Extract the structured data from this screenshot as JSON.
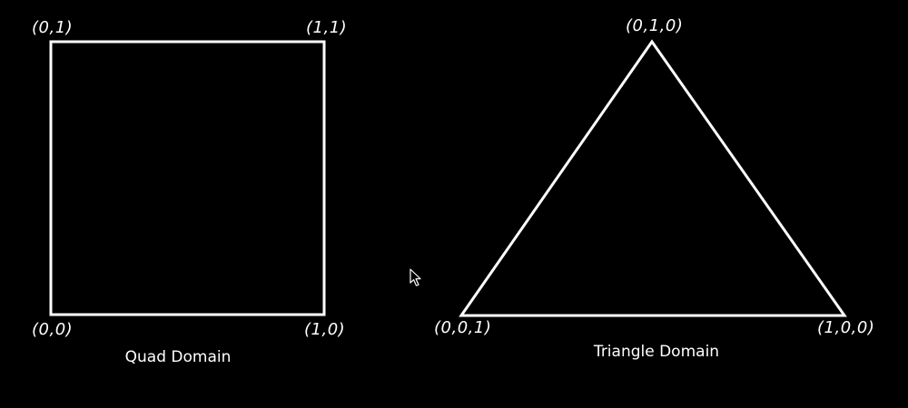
{
  "background_color": "#000000",
  "stroke_color": "#ffffff",
  "quad": {
    "caption": "Quad Domain",
    "corners": {
      "top_left": "(0,1)",
      "top_right": "(1,1)",
      "bottom_left": "(0,0)",
      "bottom_right": "(1,0)"
    }
  },
  "triangle": {
    "caption": "Triangle Domain",
    "corners": {
      "top": "(0,1,0)",
      "bottom_left": "(0,0,1)",
      "bottom_right": "(1,0,0)"
    }
  },
  "cursor_icon": "mouse-pointer"
}
